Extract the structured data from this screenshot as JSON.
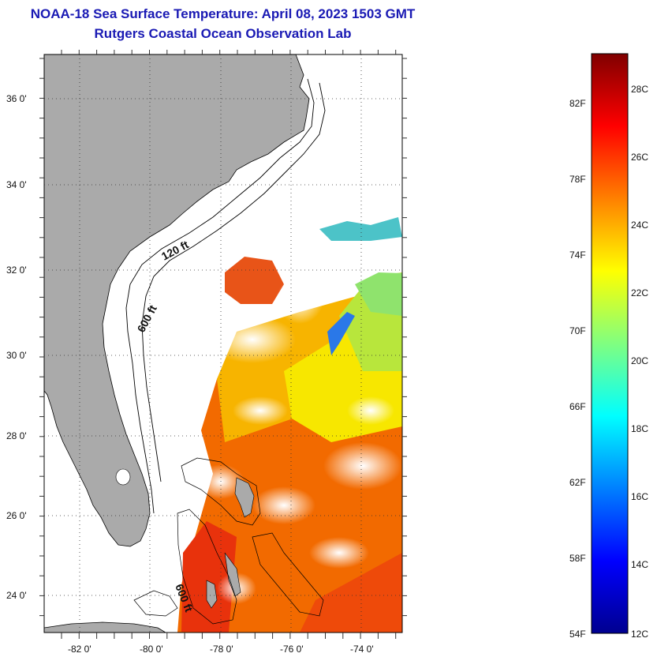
{
  "header": {
    "title": "NOAA-18 Sea Surface Temperature:  April 08, 2023 1503 GMT",
    "subtitle": "Rutgers Coastal Ocean Observation Lab"
  },
  "map": {
    "lon_labels": [
      "-82 0'",
      "-80 0'",
      "-78 0'",
      "-76 0'",
      "-74 0'"
    ],
    "lat_labels": [
      "36 0'",
      "34 0'",
      "32 0'",
      "30 0'",
      "28 0'",
      "26 0'",
      "24 0'"
    ],
    "contour_labels": [
      "120 ft",
      "600 ft",
      "600 ft"
    ],
    "colors": {
      "land": "#aaaaaa",
      "cloud": "#ffffff",
      "grid": "#555555"
    }
  },
  "colorbar": {
    "fahrenheit_labels": [
      "82F",
      "78F",
      "74F",
      "70F",
      "66F",
      "62F",
      "58F",
      "54F"
    ],
    "celsius_labels": [
      "28C",
      "26C",
      "24C",
      "22C",
      "20C",
      "18C",
      "16C",
      "14C",
      "12C"
    ],
    "gradient": [
      "#00008f",
      "#0000ff",
      "#0080ff",
      "#00ffff",
      "#80ff80",
      "#ffff00",
      "#ff8000",
      "#ff0000",
      "#800000"
    ]
  }
}
